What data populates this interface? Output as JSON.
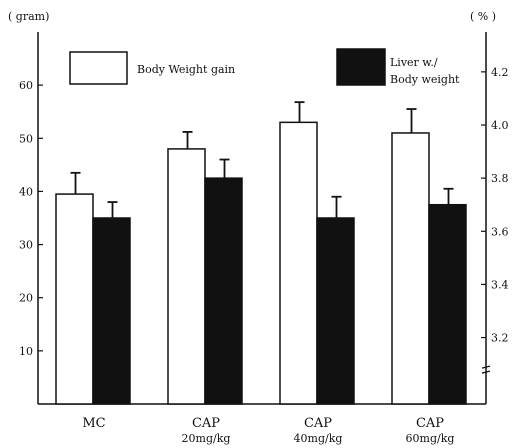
{
  "chart_data": {
    "type": "bar",
    "categories": [
      {
        "name": "MC",
        "sub": ""
      },
      {
        "name": "CAP",
        "sub": "20mg/kg"
      },
      {
        "name": "CAP",
        "sub": "40mg/kg"
      },
      {
        "name": "CAP",
        "sub": "60mg/kg"
      }
    ],
    "y_left": {
      "unit": "( gram)",
      "range": [
        0,
        70
      ],
      "ticks": [
        10,
        20,
        30,
        40,
        50,
        60
      ]
    },
    "y_right": {
      "unit": "( % )",
      "range": [
        2.95,
        4.35
      ],
      "ticks": [
        "3.2",
        "3.4",
        "3.6",
        "3.8",
        "4.0",
        "4.2"
      ],
      "broken_axis": true
    },
    "series": [
      {
        "name": "Body Weight gain",
        "axis": "left",
        "color": "#ffffff",
        "values": [
          39.5,
          48.0,
          53.0,
          51.0
        ],
        "errors": [
          4.0,
          3.2,
          3.8,
          4.5
        ]
      },
      {
        "name": "Liver w./ Body weight",
        "name_lines": [
          "Liver w./",
          "Body weight"
        ],
        "axis": "right",
        "color": "#111111",
        "values": [
          3.65,
          3.8,
          3.65,
          3.7
        ],
        "errors": [
          0.06,
          0.07,
          0.08,
          0.06
        ]
      }
    ],
    "legend": {
      "placement": "top"
    },
    "grid": false
  }
}
